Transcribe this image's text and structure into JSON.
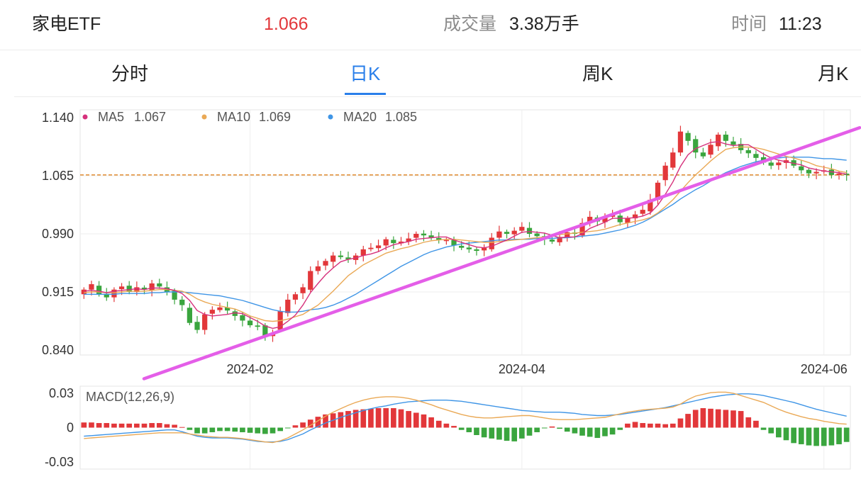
{
  "header": {
    "name": "家电ETF",
    "price": "1.066",
    "volume_label": "成交量",
    "volume": "3.38万手",
    "time_label": "时间",
    "time": "11:23"
  },
  "tabs": [
    {
      "label": "分时",
      "active": false
    },
    {
      "label": "日K",
      "active": true
    },
    {
      "label": "周K",
      "active": false
    },
    {
      "label": "月K",
      "active": false
    }
  ],
  "colors": {
    "up": "#e2373a",
    "down": "#3aa53e",
    "ma5": "#d6317c",
    "ma10": "#eaa956",
    "ma20": "#3f95e6",
    "trendline": "#e45ee8",
    "price_line": "#e08b2e",
    "active_tab": "#2a7fea"
  },
  "chart_data": [
    {
      "type": "candlestick",
      "y_ticks": [
        "1.140",
        "1.065",
        "0.990",
        "0.915",
        "0.840"
      ],
      "ylim": [
        0.835,
        1.145
      ],
      "x_ticks": [
        {
          "label": "2024-02",
          "index": 22
        },
        {
          "label": "2024-04",
          "index": 58
        },
        {
          "label": "2024-06",
          "index": 98
        }
      ],
      "legend": [
        {
          "key": "ma5",
          "label": "MA5",
          "value": "1.067"
        },
        {
          "key": "ma10",
          "label": "MA10",
          "value": "1.069"
        },
        {
          "key": "ma20",
          "label": "MA20",
          "value": "1.085"
        }
      ],
      "current_price": 1.066,
      "trendline": [
        [
          0,
          0.843
        ],
        [
          101,
          1.115
        ]
      ],
      "closes": [
        0.918,
        0.925,
        0.912,
        0.908,
        0.918,
        0.922,
        0.915,
        0.921,
        0.918,
        0.926,
        0.922,
        0.915,
        0.905,
        0.898,
        0.875,
        0.866,
        0.886,
        0.892,
        0.895,
        0.891,
        0.884,
        0.878,
        0.872,
        0.87,
        0.858,
        0.862,
        0.89,
        0.905,
        0.912,
        0.921,
        0.942,
        0.948,
        0.955,
        0.962,
        0.96,
        0.957,
        0.962,
        0.97,
        0.972,
        0.975,
        0.983,
        0.978,
        0.98,
        0.984,
        0.99,
        0.988,
        0.985,
        0.982,
        0.982,
        0.975,
        0.972,
        0.97,
        0.968,
        0.972,
        0.985,
        0.993,
        0.99,
        0.994,
        0.999,
        0.99,
        0.987,
        0.983,
        0.98,
        0.986,
        0.992,
        0.99,
        1.004,
        1.012,
        1.006,
        1.012,
        1.015,
        1.005,
        1.01,
        1.015,
        1.021,
        1.034,
        1.056,
        1.078,
        1.095,
        1.122,
        1.11,
        1.095,
        1.09,
        1.105,
        1.118,
        1.11,
        1.105,
        1.098,
        1.094,
        1.088,
        1.082,
        1.078,
        1.082,
        1.085,
        1.078,
        1.072,
        1.068,
        1.07,
        1.072,
        1.066,
        1.068,
        1.066
      ],
      "ma5": [
        0.916,
        0.917,
        0.916,
        0.914,
        0.916,
        0.917,
        0.918,
        0.919,
        0.918,
        0.92,
        0.92,
        0.919,
        0.917,
        0.913,
        0.904,
        0.891,
        0.886,
        0.884,
        0.885,
        0.886,
        0.888,
        0.887,
        0.882,
        0.877,
        0.871,
        0.868,
        0.87,
        0.877,
        0.885,
        0.898,
        0.914,
        0.926,
        0.937,
        0.946,
        0.954,
        0.957,
        0.959,
        0.962,
        0.964,
        0.967,
        0.972,
        0.976,
        0.978,
        0.98,
        0.983,
        0.984,
        0.985,
        0.986,
        0.986,
        0.982,
        0.979,
        0.976,
        0.973,
        0.972,
        0.974,
        0.978,
        0.982,
        0.987,
        0.992,
        0.993,
        0.992,
        0.991,
        0.988,
        0.985,
        0.986,
        0.986,
        0.99,
        0.997,
        1.001,
        1.005,
        1.01,
        1.01,
        1.01,
        1.011,
        1.013,
        1.017,
        1.027,
        1.041,
        1.057,
        1.077,
        1.092,
        1.1,
        1.104,
        1.108,
        1.109,
        1.106,
        1.104,
        1.105,
        1.105,
        1.099,
        1.093,
        1.088,
        1.085,
        1.083,
        1.081,
        1.079,
        1.075,
        1.073,
        1.071,
        1.07,
        1.069,
        1.067
      ],
      "ma10": [
        0.914,
        0.915,
        0.915,
        0.914,
        0.914,
        0.915,
        0.916,
        0.916,
        0.916,
        0.917,
        0.918,
        0.918,
        0.917,
        0.916,
        0.912,
        0.906,
        0.902,
        0.899,
        0.897,
        0.895,
        0.893,
        0.889,
        0.884,
        0.881,
        0.878,
        0.877,
        0.878,
        0.88,
        0.883,
        0.886,
        0.892,
        0.898,
        0.907,
        0.916,
        0.926,
        0.936,
        0.943,
        0.95,
        0.955,
        0.96,
        0.965,
        0.968,
        0.971,
        0.973,
        0.976,
        0.979,
        0.981,
        0.982,
        0.983,
        0.983,
        0.982,
        0.981,
        0.98,
        0.979,
        0.979,
        0.98,
        0.981,
        0.982,
        0.983,
        0.984,
        0.985,
        0.986,
        0.988,
        0.989,
        0.99,
        0.991,
        0.992,
        0.993,
        0.994,
        0.996,
        0.999,
        1.002,
        1.004,
        1.006,
        1.008,
        1.011,
        1.017,
        1.025,
        1.034,
        1.045,
        1.056,
        1.066,
        1.075,
        1.084,
        1.092,
        1.099,
        1.101,
        1.102,
        1.102,
        1.101,
        1.099,
        1.096,
        1.093,
        1.09,
        1.088,
        1.085,
        1.082,
        1.078,
        1.076,
        1.074,
        1.071,
        1.069
      ],
      "ma20": [
        0.912,
        0.912,
        0.912,
        0.912,
        0.912,
        0.913,
        0.913,
        0.913,
        0.913,
        0.914,
        0.914,
        0.915,
        0.915,
        0.915,
        0.914,
        0.913,
        0.912,
        0.911,
        0.91,
        0.908,
        0.906,
        0.904,
        0.901,
        0.898,
        0.895,
        0.892,
        0.89,
        0.889,
        0.889,
        0.89,
        0.892,
        0.893,
        0.895,
        0.898,
        0.902,
        0.907,
        0.912,
        0.918,
        0.924,
        0.93,
        0.936,
        0.942,
        0.948,
        0.953,
        0.958,
        0.963,
        0.967,
        0.97,
        0.973,
        0.975,
        0.977,
        0.978,
        0.979,
        0.98,
        0.981,
        0.982,
        0.982,
        0.983,
        0.983,
        0.983,
        0.984,
        0.984,
        0.984,
        0.985,
        0.985,
        0.986,
        0.987,
        0.988,
        0.989,
        0.991,
        0.993,
        0.995,
        0.998,
        1.001,
        1.005,
        1.01,
        1.016,
        1.022,
        1.028,
        1.035,
        1.041,
        1.047,
        1.052,
        1.058,
        1.064,
        1.069,
        1.073,
        1.077,
        1.08,
        1.083,
        1.085,
        1.087,
        1.088,
        1.089,
        1.089,
        1.089,
        1.089,
        1.088,
        1.087,
        1.087,
        1.086,
        1.085
      ]
    },
    {
      "type": "macd",
      "label": "MACD(12,26,9)",
      "y_ticks": [
        "0.03",
        "0",
        "-0.03"
      ],
      "ylim": [
        -0.03,
        0.03
      ],
      "bars": [
        0.0045,
        0.0045,
        0.004,
        0.004,
        0.0035,
        0.0035,
        0.0035,
        0.0035,
        0.0035,
        0.004,
        0.004,
        0.003,
        0.0025,
        0.0005,
        -0.002,
        -0.005,
        -0.005,
        -0.004,
        -0.003,
        -0.003,
        -0.0035,
        -0.004,
        -0.0045,
        -0.005,
        -0.0055,
        -0.005,
        -0.003,
        -0.0005,
        0.002,
        0.0045,
        0.007,
        0.0095,
        0.0115,
        0.0125,
        0.0135,
        0.0145,
        0.0155,
        0.016,
        0.0165,
        0.017,
        0.017,
        0.017,
        0.016,
        0.0145,
        0.013,
        0.0115,
        0.009,
        0.006,
        0.0035,
        0.0015,
        -0.002,
        -0.004,
        -0.0065,
        -0.0085,
        -0.0095,
        -0.0105,
        -0.0115,
        -0.012,
        -0.0095,
        -0.007,
        -0.004,
        -0.0005,
        0.001,
        -0.001,
        -0.0035,
        -0.005,
        -0.007,
        -0.008,
        -0.009,
        -0.0075,
        -0.006,
        -0.002,
        0.0035,
        0.005,
        0.004,
        0.0035,
        0.0035,
        0.003,
        0.0035,
        0.008,
        0.012,
        0.0155,
        0.017,
        0.0165,
        0.016,
        0.0155,
        0.015,
        0.0145,
        0.009,
        0.006,
        -0.002,
        -0.005,
        -0.0085,
        -0.011,
        -0.0135,
        -0.0145,
        -0.0155,
        -0.016,
        -0.016,
        -0.0155,
        -0.0145,
        -0.0125
      ],
      "dif": [
        -0.0075,
        -0.007,
        -0.0065,
        -0.006,
        -0.0055,
        -0.005,
        -0.0045,
        -0.004,
        -0.0035,
        -0.003,
        -0.0025,
        -0.002,
        -0.002,
        -0.0035,
        -0.0055,
        -0.0075,
        -0.0085,
        -0.009,
        -0.009,
        -0.009,
        -0.0095,
        -0.01,
        -0.011,
        -0.012,
        -0.0125,
        -0.0125,
        -0.012,
        -0.0105,
        -0.008,
        -0.0055,
        -0.002,
        0.001,
        0.004,
        0.0065,
        0.009,
        0.011,
        0.013,
        0.015,
        0.0165,
        0.018,
        0.019,
        0.0205,
        0.0215,
        0.0225,
        0.023,
        0.0235,
        0.024,
        0.024,
        0.024,
        0.0235,
        0.023,
        0.022,
        0.021,
        0.02,
        0.019,
        0.018,
        0.017,
        0.016,
        0.015,
        0.0145,
        0.014,
        0.0135,
        0.0135,
        0.0135,
        0.013,
        0.0125,
        0.0115,
        0.011,
        0.0105,
        0.0105,
        0.011,
        0.0115,
        0.0125,
        0.0135,
        0.0145,
        0.0155,
        0.0165,
        0.0175,
        0.019,
        0.0205,
        0.022,
        0.0235,
        0.025,
        0.0265,
        0.0275,
        0.0285,
        0.029,
        0.0295,
        0.0295,
        0.029,
        0.028,
        0.0265,
        0.025,
        0.0235,
        0.022,
        0.02,
        0.018,
        0.016,
        0.0145,
        0.013,
        0.0115,
        0.01
      ],
      "dea": [
        -0.0095,
        -0.009,
        -0.0085,
        -0.008,
        -0.0075,
        -0.007,
        -0.0065,
        -0.006,
        -0.0055,
        -0.005,
        -0.0045,
        -0.0045,
        -0.0045,
        -0.0045,
        -0.0055,
        -0.0065,
        -0.0075,
        -0.008,
        -0.0085,
        -0.0085,
        -0.009,
        -0.0095,
        -0.0105,
        -0.0115,
        -0.0125,
        -0.013,
        -0.0115,
        -0.009,
        -0.0055,
        -0.002,
        0.002,
        0.006,
        0.01,
        0.0135,
        0.0165,
        0.0195,
        0.022,
        0.024,
        0.0255,
        0.0265,
        0.027,
        0.027,
        0.0265,
        0.0255,
        0.024,
        0.022,
        0.02,
        0.0175,
        0.0155,
        0.0135,
        0.0115,
        0.01,
        0.009,
        0.0085,
        0.0085,
        0.009,
        0.0095,
        0.01,
        0.0105,
        0.0105,
        0.0095,
        0.0085,
        0.0075,
        0.007,
        0.007,
        0.007,
        0.0075,
        0.008,
        0.0085,
        0.009,
        0.0105,
        0.012,
        0.0135,
        0.0145,
        0.0155,
        0.016,
        0.0165,
        0.017,
        0.018,
        0.0205,
        0.0245,
        0.0275,
        0.029,
        0.0305,
        0.031,
        0.031,
        0.03,
        0.028,
        0.026,
        0.024,
        0.022,
        0.019,
        0.016,
        0.0135,
        0.0115,
        0.0095,
        0.008,
        0.007,
        0.0055,
        0.0045,
        0.0035,
        0.003
      ]
    }
  ]
}
